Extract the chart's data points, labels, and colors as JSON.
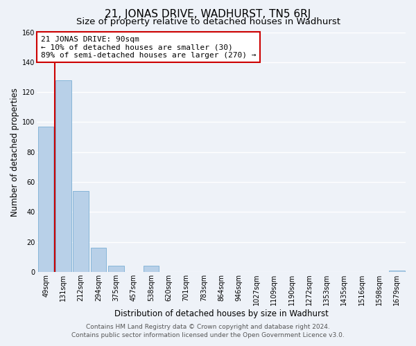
{
  "title": "21, JONAS DRIVE, WADHURST, TN5 6RJ",
  "subtitle": "Size of property relative to detached houses in Wadhurst",
  "xlabel": "Distribution of detached houses by size in Wadhurst",
  "ylabel": "Number of detached properties",
  "bin_labels": [
    "49sqm",
    "131sqm",
    "212sqm",
    "294sqm",
    "375sqm",
    "457sqm",
    "538sqm",
    "620sqm",
    "701sqm",
    "783sqm",
    "864sqm",
    "946sqm",
    "1027sqm",
    "1109sqm",
    "1190sqm",
    "1272sqm",
    "1353sqm",
    "1435sqm",
    "1516sqm",
    "1598sqm",
    "1679sqm"
  ],
  "bar_heights": [
    97,
    128,
    54,
    16,
    4,
    0,
    4,
    0,
    0,
    0,
    0,
    0,
    0,
    0,
    0,
    0,
    0,
    0,
    0,
    0,
    1
  ],
  "bar_color": "#b8d0e8",
  "bar_edge_color": "#7aaed4",
  "ylim": [
    0,
    160
  ],
  "yticks": [
    0,
    20,
    40,
    60,
    80,
    100,
    120,
    140,
    160
  ],
  "annotation_title": "21 JONAS DRIVE: 90sqm",
  "annotation_line1": "← 10% of detached houses are smaller (30)",
  "annotation_line2": "89% of semi-detached houses are larger (270) →",
  "annotation_box_color": "#ffffff",
  "annotation_box_edge_color": "#cc0000",
  "vline_color": "#cc0000",
  "footer1": "Contains HM Land Registry data © Crown copyright and database right 2024.",
  "footer2": "Contains public sector information licensed under the Open Government Licence v3.0.",
  "background_color": "#eef2f8",
  "grid_color": "#ffffff",
  "title_fontsize": 11,
  "subtitle_fontsize": 9.5,
  "axis_label_fontsize": 8.5,
  "tick_fontsize": 7,
  "annotation_fontsize": 8,
  "footer_fontsize": 6.5,
  "vline_x": 0.52
}
